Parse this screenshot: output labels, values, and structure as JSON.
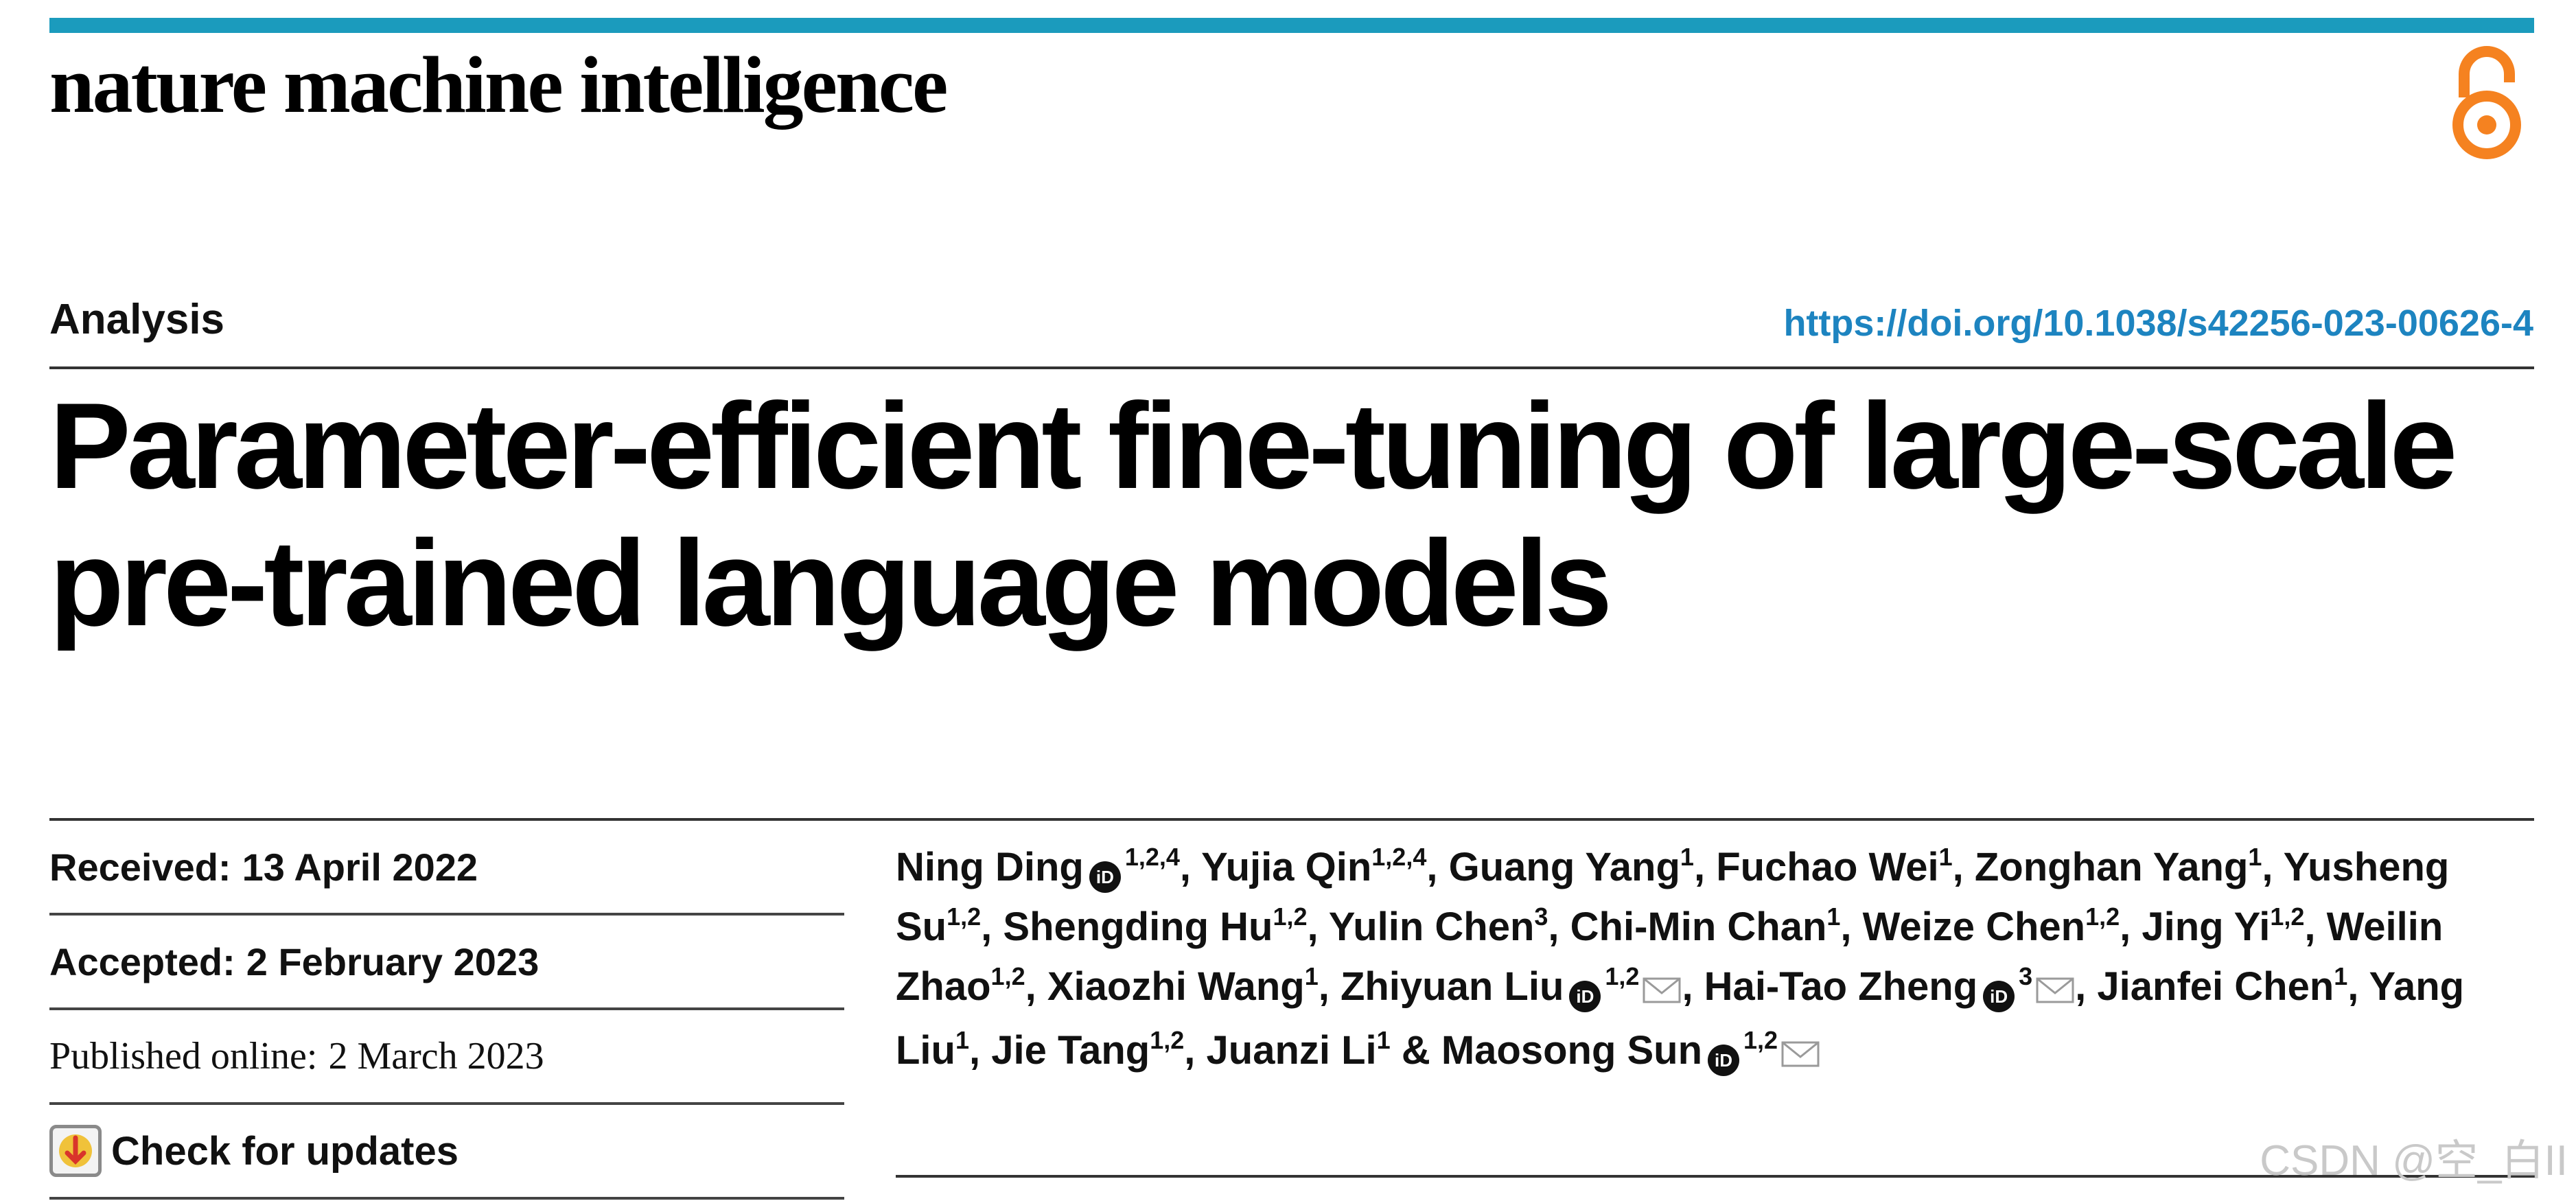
{
  "header": {
    "journal": "nature machine intelligence",
    "brand_color": "#1b9bbd",
    "open_access_icon": "open-access-lock-icon"
  },
  "article": {
    "type": "Analysis",
    "doi": "https://doi.org/10.1038/s42256-023-00626-4",
    "title_line1": "Parameter-efficient fine-tuning of large-scale",
    "title_line2": "pre-trained language models"
  },
  "dates": {
    "received_label": "Received:",
    "received_value": "13 April 2022",
    "accepted_label": "Accepted:",
    "accepted_value": "2 February 2023",
    "published_label": "Published online:",
    "published_value": "2 March 2023"
  },
  "check_updates": {
    "label": "Check for updates"
  },
  "orcid_label": "iD",
  "authors": [
    {
      "name": "Ning Ding",
      "orcid": true,
      "aff": "1,2,4",
      "email": false,
      "sep": ", "
    },
    {
      "name": "Yujia Qin",
      "orcid": false,
      "aff": "1,2,4",
      "email": false,
      "sep": ", "
    },
    {
      "name": "Guang Yang",
      "orcid": false,
      "aff": "1",
      "email": false,
      "sep": ", "
    },
    {
      "name": "Fuchao Wei",
      "orcid": false,
      "aff": "1",
      "email": false,
      "sep": ", "
    },
    {
      "name": "Zonghan Yang",
      "orcid": false,
      "aff": "1",
      "email": false,
      "sep": ", "
    },
    {
      "name": "Yusheng Su",
      "orcid": false,
      "aff": "1,2",
      "email": false,
      "sep": ", "
    },
    {
      "name": "Shengding Hu",
      "orcid": false,
      "aff": "1,2",
      "email": false,
      "sep": ", "
    },
    {
      "name": "Yulin Chen",
      "orcid": false,
      "aff": "3",
      "email": false,
      "sep": ", "
    },
    {
      "name": "Chi-Min Chan",
      "orcid": false,
      "aff": "1",
      "email": false,
      "sep": ", "
    },
    {
      "name": "Weize Chen",
      "orcid": false,
      "aff": "1,2",
      "email": false,
      "sep": ", "
    },
    {
      "name": "Jing Yi",
      "orcid": false,
      "aff": "1,2",
      "email": false,
      "sep": ", "
    },
    {
      "name": "Weilin Zhao",
      "orcid": false,
      "aff": "1,2",
      "email": false,
      "sep": ", "
    },
    {
      "name": "Xiaozhi Wang",
      "orcid": false,
      "aff": "1",
      "email": false,
      "sep": ", "
    },
    {
      "name": "Zhiyuan Liu",
      "orcid": true,
      "aff": "1,2",
      "email": true,
      "sep": ", "
    },
    {
      "name": "Hai-Tao Zheng",
      "orcid": true,
      "aff": "3",
      "email": true,
      "sep": ", "
    },
    {
      "name": "Jianfei Chen",
      "orcid": false,
      "aff": "1",
      "email": false,
      "sep": ", "
    },
    {
      "name": "Yang Liu",
      "orcid": false,
      "aff": "1",
      "email": false,
      "sep": ", "
    },
    {
      "name": "Jie Tang",
      "orcid": false,
      "aff": "1,2",
      "email": false,
      "sep": ", "
    },
    {
      "name": "Juanzi Li",
      "orcid": false,
      "aff": "1",
      "email": false,
      "sep": " & "
    },
    {
      "name": "Maosong Sun",
      "orcid": true,
      "aff": "1,2",
      "email": true,
      "sep": ""
    }
  ],
  "watermark": "CSDN @空_白II"
}
